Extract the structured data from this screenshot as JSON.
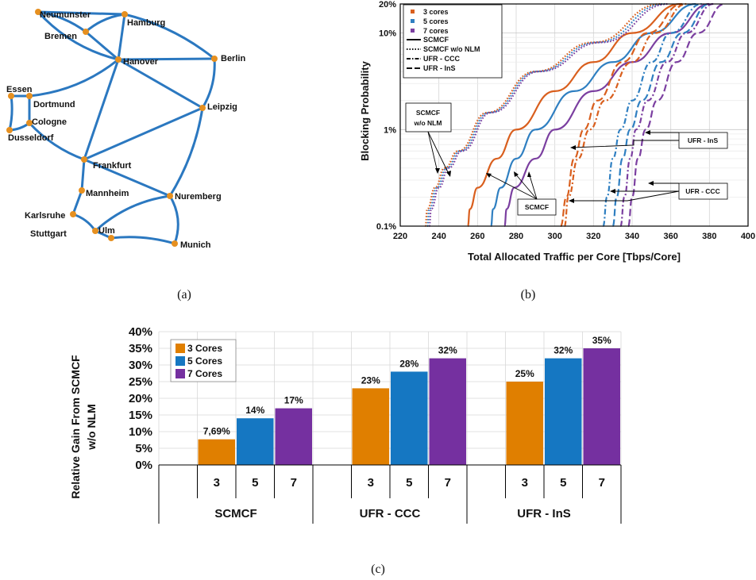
{
  "captions": {
    "a": "(a)",
    "b": "(b)",
    "c": "(c)"
  },
  "network": {
    "node_color": "#e69020",
    "link_color": "#2b78c0",
    "nodes": {
      "neumunster": "Neumunster",
      "bremen": "Bremen",
      "hamburg": "Hamburg",
      "hanover": "Hanover",
      "berlin": "Berlin",
      "essen": "Essen",
      "dortmund": "Dortmund",
      "cologne": "Cologne",
      "dusseldorf": "Dusseldorf",
      "leipzig": "Leipzig",
      "frankfurt": "Frankfurt",
      "mannheim": "Mannheim",
      "nuremberg": "Nuremberg",
      "karlsruhe": "Karlsruhe",
      "stuttgart": "Stuttgart",
      "ulm": "Ulm",
      "munich": "Munich"
    }
  },
  "chart_data": [
    {
      "type": "line",
      "xlabel": "Total Allocated Traffic per Core [Tbps/Core]",
      "ylabel": "Blocking Probability",
      "xlim": [
        220,
        400
      ],
      "ylim": [
        0.1,
        20
      ],
      "yscale": "log",
      "x_ticks": [
        "220",
        "240",
        "260",
        "280",
        "300",
        "320",
        "340",
        "360",
        "380",
        "400"
      ],
      "y_ticks": [
        "0.1%",
        "1%",
        "10%",
        "20%"
      ],
      "grid": true,
      "legend_position": "top-left",
      "legend": {
        "colors": [
          {
            "label": "3 cores",
            "color": "#d95f1e"
          },
          {
            "label": "5 cores",
            "color": "#2f7fc1"
          },
          {
            "label": "7 cores",
            "color": "#7b3fa0"
          }
        ],
        "styles": [
          {
            "label": "SCMCF",
            "dash": "solid"
          },
          {
            "label": "SCMCF w/o NLM",
            "dash": "dotted"
          },
          {
            "label": "UFR - CCC",
            "dash": "dash-dot"
          },
          {
            "label": "UFR - InS",
            "dash": "long-dash"
          }
        ]
      },
      "annotations": {
        "scmcf_nlm_line1": "SCMCF",
        "scmcf_nlm_line2": "w/o NLM",
        "scmcf": "SCMCF",
        "ufr_ins": "UFR - InS",
        "ufr_ccc": "UFR - CCC"
      },
      "series": [
        {
          "cores": 3,
          "method": "SCMCF",
          "color": "#d95f1e",
          "dash": "solid",
          "points": [
            [
              255,
              0.1
            ],
            [
              256,
              0.15
            ],
            [
              260,
              0.25
            ],
            [
              270,
              0.5
            ],
            [
              280,
              1
            ],
            [
              300,
              2.5
            ],
            [
              320,
              5
            ],
            [
              340,
              10
            ],
            [
              365,
              20
            ]
          ]
        },
        {
          "cores": 5,
          "method": "SCMCF",
          "color": "#2f7fc1",
          "dash": "solid",
          "points": [
            [
              267,
              0.1
            ],
            [
              268,
              0.15
            ],
            [
              272,
              0.25
            ],
            [
              280,
              0.5
            ],
            [
              290,
              1
            ],
            [
              310,
              2.5
            ],
            [
              330,
              5
            ],
            [
              350,
              10
            ],
            [
              373,
              20
            ]
          ]
        },
        {
          "cores": 7,
          "method": "SCMCF",
          "color": "#7b3fa0",
          "dash": "solid",
          "points": [
            [
              274,
              0.1
            ],
            [
              275,
              0.15
            ],
            [
              279,
              0.25
            ],
            [
              290,
              0.5
            ],
            [
              300,
              1
            ],
            [
              320,
              2.5
            ],
            [
              340,
              5
            ],
            [
              360,
              10
            ],
            [
              380,
              20
            ]
          ]
        },
        {
          "cores": 3,
          "method": "SCMCF w/o NLM",
          "color": "#d95f1e",
          "dash": "dotted",
          "points": [
            [
              233,
              0.1
            ],
            [
              234,
              0.15
            ],
            [
              238,
              0.25
            ],
            [
              243,
              0.4
            ],
            [
              250,
              0.6
            ],
            [
              265,
              1.5
            ],
            [
              290,
              4
            ],
            [
              320,
              8
            ],
            [
              355,
              20
            ]
          ]
        },
        {
          "cores": 5,
          "method": "SCMCF w/o NLM",
          "color": "#2f7fc1",
          "dash": "dotted",
          "points": [
            [
              234,
              0.1
            ],
            [
              235,
              0.15
            ],
            [
              239,
              0.25
            ],
            [
              244,
              0.4
            ],
            [
              251,
              0.6
            ],
            [
              266,
              1.5
            ],
            [
              291,
              4
            ],
            [
              322,
              8
            ],
            [
              357,
              20
            ]
          ]
        },
        {
          "cores": 7,
          "method": "SCMCF w/o NLM",
          "color": "#7b3fa0",
          "dash": "dotted",
          "points": [
            [
              235,
              0.1
            ],
            [
              236,
              0.15
            ],
            [
              240,
              0.25
            ],
            [
              245,
              0.4
            ],
            [
              252,
              0.6
            ],
            [
              267,
              1.5
            ],
            [
              292,
              4
            ],
            [
              324,
              8
            ],
            [
              359,
              20
            ]
          ]
        },
        {
          "cores": 3,
          "method": "UFR - CCC",
          "color": "#d95f1e",
          "dash": "dash-dot",
          "points": [
            [
              305,
              0.1
            ],
            [
              307,
              0.2
            ],
            [
              312,
              0.5
            ],
            [
              318,
              1
            ],
            [
              326,
              2
            ],
            [
              340,
              5
            ],
            [
              352,
              10
            ],
            [
              368,
              20
            ]
          ]
        },
        {
          "cores": 5,
          "method": "UFR - CCC",
          "color": "#2f7fc1",
          "dash": "dash-dot",
          "points": [
            [
              325,
              0.1
            ],
            [
              327,
              0.2
            ],
            [
              330,
              0.5
            ],
            [
              334,
              1
            ],
            [
              340,
              2
            ],
            [
              350,
              5
            ],
            [
              360,
              10
            ],
            [
              376,
              20
            ]
          ]
        },
        {
          "cores": 7,
          "method": "UFR - CCC",
          "color": "#7b3fa0",
          "dash": "dash-dot",
          "points": [
            [
              334,
              0.1
            ],
            [
              336,
              0.2
            ],
            [
              339,
              0.5
            ],
            [
              342,
              1
            ],
            [
              348,
              2
            ],
            [
              358,
              5
            ],
            [
              368,
              10
            ],
            [
              382,
              20
            ]
          ]
        },
        {
          "cores": 3,
          "method": "UFR - InS",
          "color": "#d95f1e",
          "dash": "long-dash",
          "points": [
            [
              303,
              0.1
            ],
            [
              306,
              0.2
            ],
            [
              310,
              0.5
            ],
            [
              315,
              1
            ],
            [
              322,
              2
            ],
            [
              335,
              5
            ],
            [
              348,
              10
            ],
            [
              366,
              20
            ]
          ]
        },
        {
          "cores": 5,
          "method": "UFR - InS",
          "color": "#2f7fc1",
          "dash": "long-dash",
          "points": [
            [
              330,
              0.1
            ],
            [
              332,
              0.2
            ],
            [
              335,
              0.5
            ],
            [
              339,
              1
            ],
            [
              345,
              2
            ],
            [
              355,
              5
            ],
            [
              366,
              10
            ],
            [
              380,
              20
            ]
          ]
        },
        {
          "cores": 7,
          "method": "UFR - InS",
          "color": "#7b3fa0",
          "dash": "long-dash",
          "points": [
            [
              338,
              0.1
            ],
            [
              340,
              0.2
            ],
            [
              343,
              0.5
            ],
            [
              347,
              1
            ],
            [
              353,
              2
            ],
            [
              363,
              5
            ],
            [
              374,
              10
            ],
            [
              388,
              20
            ]
          ]
        }
      ]
    },
    {
      "type": "bar",
      "ylabel_line1": "Relative Gain From SCMCF",
      "ylabel_line2": "w/o NLM",
      "ylim": [
        0,
        40
      ],
      "y_ticks": [
        "0%",
        "5%",
        "10%",
        "15%",
        "20%",
        "25%",
        "30%",
        "35%",
        "40%"
      ],
      "grid": true,
      "legend_position": "top-left",
      "groups": [
        "SCMCF",
        "UFR - CCC",
        "UFR - InS"
      ],
      "sub_categories": [
        "3",
        "5",
        "7"
      ],
      "series": [
        {
          "name": "3 Cores",
          "color": "#e07f00",
          "values": [
            7.69,
            23,
            25
          ],
          "labels": [
            "7,69%",
            "23%",
            "25%"
          ]
        },
        {
          "name": "5 Cores",
          "color": "#1577c2",
          "values": [
            14,
            28,
            32
          ],
          "labels": [
            "14%",
            "28%",
            "32%"
          ]
        },
        {
          "name": "7 Cores",
          "color": "#7530a0",
          "values": [
            17,
            32,
            35
          ],
          "labels": [
            "17%",
            "32%",
            "35%"
          ]
        }
      ]
    }
  ]
}
